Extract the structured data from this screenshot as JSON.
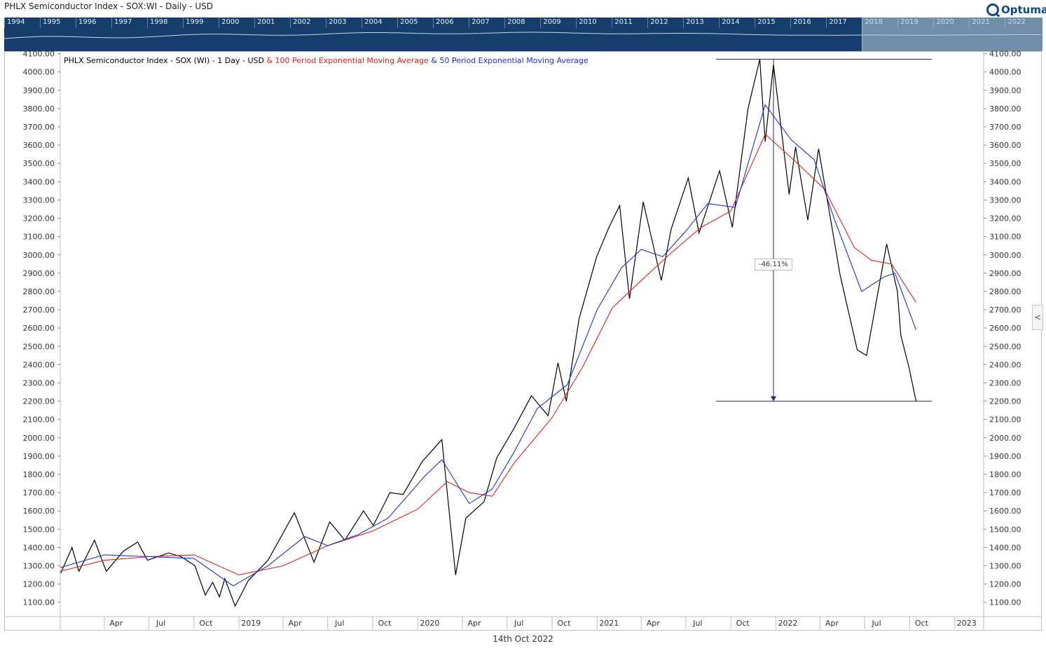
{
  "header": {
    "title": "PHLX Semiconductor Index - SOX:WI - Daily - USD",
    "logo_text": "Optuma"
  },
  "overview": {
    "years": [
      "1994",
      "1995",
      "1996",
      "1997",
      "1998",
      "1999",
      "2000",
      "2001",
      "2002",
      "2003",
      "2004",
      "2005",
      "2006",
      "2007",
      "2008",
      "2009",
      "2010",
      "2011",
      "2012",
      "2013",
      "2014",
      "2015",
      "2016",
      "2017",
      "2018",
      "2019",
      "2020",
      "2021",
      "2022"
    ],
    "selected_from": "2018",
    "bg_color": "#163e6c"
  },
  "legend": {
    "base": "PHLX Semiconductor Index - SOX (WI) - 1 Day - USD",
    "ema100": " & 100 Period Exponential Moving Average",
    "ema50": " & 50 Period Exponential Moving Average"
  },
  "drawdown_label": "-46.11%",
  "date_label": "14th Oct 2022",
  "side_button": "<",
  "chart_data": {
    "type": "line",
    "ylim": [
      1030,
      4110
    ],
    "y_ticks": [
      "1100.00",
      "1200.00",
      "1300.00",
      "1400.00",
      "1500.00",
      "1600.00",
      "1700.00",
      "1800.00",
      "1900.00",
      "2000.00",
      "2100.00",
      "2200.00",
      "2300.00",
      "2400.00",
      "2500.00",
      "2600.00",
      "2700.00",
      "2800.00",
      "2900.00",
      "3000.00",
      "3100.00",
      "3200.00",
      "3300.00",
      "3400.00",
      "3500.00",
      "3600.00",
      "3700.00",
      "3800.00",
      "3900.00",
      "4000.00",
      "4100.00"
    ],
    "x_range": [
      "2018-01-01",
      "2023-03-01"
    ],
    "x_ticks": [
      {
        "label": "Apr",
        "date": "2018-04-01"
      },
      {
        "label": "Jul",
        "date": "2018-07-01"
      },
      {
        "label": "Oct",
        "date": "2018-10-01"
      },
      {
        "label": "2019",
        "date": "2019-01-01"
      },
      {
        "label": "Apr",
        "date": "2019-04-01"
      },
      {
        "label": "Jul",
        "date": "2019-07-01"
      },
      {
        "label": "Oct",
        "date": "2019-10-01"
      },
      {
        "label": "2020",
        "date": "2020-01-01"
      },
      {
        "label": "Apr",
        "date": "2020-04-01"
      },
      {
        "label": "Jul",
        "date": "2020-07-01"
      },
      {
        "label": "Oct",
        "date": "2020-10-01"
      },
      {
        "label": "2021",
        "date": "2021-01-01"
      },
      {
        "label": "Apr",
        "date": "2021-04-01"
      },
      {
        "label": "Jul",
        "date": "2021-07-01"
      },
      {
        "label": "Oct",
        "date": "2021-10-01"
      },
      {
        "label": "2022",
        "date": "2022-01-01"
      },
      {
        "label": "Apr",
        "date": "2022-04-01"
      },
      {
        "label": "Jul",
        "date": "2022-07-01"
      },
      {
        "label": "Oct",
        "date": "2022-10-01"
      },
      {
        "label": "2023",
        "date": "2023-01-01"
      }
    ],
    "series": [
      {
        "name": "PHLX Semiconductor Index - SOX (WI)",
        "color": "#000000",
        "points": [
          [
            "2018-01-02",
            1260
          ],
          [
            "2018-01-25",
            1400
          ],
          [
            "2018-02-08",
            1270
          ],
          [
            "2018-03-12",
            1440
          ],
          [
            "2018-04-05",
            1270
          ],
          [
            "2018-05-10",
            1380
          ],
          [
            "2018-06-08",
            1430
          ],
          [
            "2018-06-28",
            1330
          ],
          [
            "2018-08-10",
            1370
          ],
          [
            "2018-09-05",
            1350
          ],
          [
            "2018-10-03",
            1300
          ],
          [
            "2018-10-24",
            1140
          ],
          [
            "2018-11-08",
            1210
          ],
          [
            "2018-11-22",
            1130
          ],
          [
            "2018-12-03",
            1230
          ],
          [
            "2018-12-24",
            1080
          ],
          [
            "2019-01-20",
            1220
          ],
          [
            "2019-03-01",
            1330
          ],
          [
            "2019-04-24",
            1590
          ],
          [
            "2019-06-03",
            1320
          ],
          [
            "2019-07-05",
            1540
          ],
          [
            "2019-08-05",
            1440
          ],
          [
            "2019-09-12",
            1600
          ],
          [
            "2019-10-02",
            1520
          ],
          [
            "2019-11-05",
            1700
          ],
          [
            "2019-12-02",
            1690
          ],
          [
            "2020-01-10",
            1870
          ],
          [
            "2020-02-19",
            1990
          ],
          [
            "2020-03-18",
            1250
          ],
          [
            "2020-04-08",
            1560
          ],
          [
            "2020-05-15",
            1650
          ],
          [
            "2020-06-10",
            1890
          ],
          [
            "2020-07-15",
            2050
          ],
          [
            "2020-08-20",
            2230
          ],
          [
            "2020-09-23",
            2120
          ],
          [
            "2020-10-13",
            2410
          ],
          [
            "2020-10-30",
            2200
          ],
          [
            "2020-11-25",
            2650
          ],
          [
            "2020-12-31",
            2990
          ],
          [
            "2021-01-25",
            3150
          ],
          [
            "2021-02-16",
            3270
          ],
          [
            "2021-03-08",
            2760
          ],
          [
            "2021-04-05",
            3290
          ],
          [
            "2021-05-12",
            2860
          ],
          [
            "2021-06-01",
            3140
          ],
          [
            "2021-07-06",
            3420
          ],
          [
            "2021-07-28",
            3120
          ],
          [
            "2021-09-08",
            3460
          ],
          [
            "2021-10-04",
            3150
          ],
          [
            "2021-11-05",
            3800
          ],
          [
            "2021-11-29",
            4070
          ],
          [
            "2021-12-10",
            3620
          ],
          [
            "2021-12-27",
            4040
          ],
          [
            "2022-01-28",
            3330
          ],
          [
            "2022-02-10",
            3590
          ],
          [
            "2022-03-07",
            3190
          ],
          [
            "2022-03-29",
            3580
          ],
          [
            "2022-05-12",
            2890
          ],
          [
            "2022-06-16",
            2480
          ],
          [
            "2022-07-05",
            2450
          ],
          [
            "2022-08-15",
            3060
          ],
          [
            "2022-09-06",
            2800
          ],
          [
            "2022-09-13",
            2560
          ],
          [
            "2022-09-30",
            2380
          ],
          [
            "2022-10-14",
            2200
          ]
        ]
      },
      {
        "name": "100 Period Exponential Moving Average",
        "color": "#e0201b",
        "points": [
          [
            "2018-01-01",
            1270
          ],
          [
            "2018-04-01",
            1330
          ],
          [
            "2018-07-01",
            1350
          ],
          [
            "2018-10-01",
            1360
          ],
          [
            "2019-01-01",
            1250
          ],
          [
            "2019-04-01",
            1300
          ],
          [
            "2019-07-01",
            1410
          ],
          [
            "2019-10-01",
            1490
          ],
          [
            "2020-01-01",
            1610
          ],
          [
            "2020-03-01",
            1760
          ],
          [
            "2020-04-15",
            1700
          ],
          [
            "2020-06-01",
            1680
          ],
          [
            "2020-07-15",
            1860
          ],
          [
            "2020-10-01",
            2110
          ],
          [
            "2020-12-01",
            2380
          ],
          [
            "2021-02-01",
            2710
          ],
          [
            "2021-04-01",
            2860
          ],
          [
            "2021-06-01",
            3010
          ],
          [
            "2021-08-01",
            3150
          ],
          [
            "2021-10-01",
            3240
          ],
          [
            "2021-12-10",
            3660
          ],
          [
            "2022-02-10",
            3510
          ],
          [
            "2022-04-10",
            3360
          ],
          [
            "2022-06-10",
            3040
          ],
          [
            "2022-07-15",
            2970
          ],
          [
            "2022-08-25",
            2950
          ],
          [
            "2022-10-14",
            2740
          ]
        ]
      },
      {
        "name": "50 Period Exponential Moving Average",
        "color": "#1a2ee0",
        "points": [
          [
            "2018-01-01",
            1290
          ],
          [
            "2018-04-01",
            1360
          ],
          [
            "2018-07-01",
            1350
          ],
          [
            "2018-10-01",
            1340
          ],
          [
            "2018-12-20",
            1190
          ],
          [
            "2019-03-01",
            1300
          ],
          [
            "2019-05-15",
            1460
          ],
          [
            "2019-07-01",
            1410
          ],
          [
            "2019-09-01",
            1470
          ],
          [
            "2019-11-01",
            1560
          ],
          [
            "2020-01-15",
            1790
          ],
          [
            "2020-02-19",
            1880
          ],
          [
            "2020-04-15",
            1640
          ],
          [
            "2020-06-01",
            1720
          ],
          [
            "2020-07-15",
            1920
          ],
          [
            "2020-09-01",
            2160
          ],
          [
            "2020-11-01",
            2290
          ],
          [
            "2021-01-01",
            2700
          ],
          [
            "2021-02-20",
            2930
          ],
          [
            "2021-04-01",
            3030
          ],
          [
            "2021-05-15",
            2990
          ],
          [
            "2021-07-01",
            3130
          ],
          [
            "2021-08-15",
            3280
          ],
          [
            "2021-10-10",
            3260
          ],
          [
            "2021-12-10",
            3820
          ],
          [
            "2022-02-01",
            3630
          ],
          [
            "2022-03-20",
            3520
          ],
          [
            "2022-05-01",
            3190
          ],
          [
            "2022-06-25",
            2800
          ],
          [
            "2022-08-10",
            2880
          ],
          [
            "2022-09-01",
            2900
          ],
          [
            "2022-10-14",
            2590
          ]
        ]
      }
    ],
    "drawdown": {
      "from_date": "2021-12-27",
      "high": 4070,
      "low": 2200,
      "start_date": "2021-09-01",
      "end_date": "2022-11-15",
      "pct": "-46.11%"
    }
  }
}
